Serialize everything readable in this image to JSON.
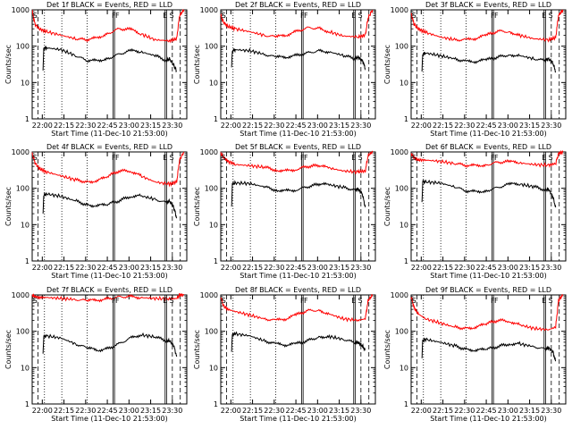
{
  "chart_data": [
    {
      "type": "line",
      "title": "Det 1f BLACK = Events, RED = LLD",
      "xlabel": "Start Time (11-Dec-10 21:53:00)",
      "ylabel": "Counts/sec",
      "x_ticks": [
        "22:00",
        "22:15",
        "22:30",
        "22:45",
        "23:00",
        "23:15",
        "23:30"
      ],
      "y_ticks": [
        "1",
        "10",
        "100",
        "1000"
      ],
      "ylim": [
        1,
        1000
      ],
      "yscale": "log",
      "markers": [
        "S",
        "F",
        "F",
        "E",
        "S"
      ],
      "series": [
        {
          "color": "#ff0000",
          "x": [
            0,
            4,
            10,
            20,
            40,
            60,
            76,
            90,
            104,
            120,
            136,
            150,
            170,
            190,
            200,
            204,
            210
          ],
          "values": [
            900,
            400,
            300,
            250,
            200,
            160,
            150,
            170,
            220,
            300,
            290,
            220,
            150,
            140,
            160,
            700,
            1000
          ]
        },
        {
          "color": "#000000",
          "x": [
            15,
            16,
            20,
            40,
            60,
            76,
            90,
            104,
            120,
            136,
            150,
            170,
            186,
            190,
            196,
            200
          ],
          "values": [
            20,
            85,
            90,
            80,
            55,
            40,
            40,
            45,
            60,
            75,
            70,
            55,
            40,
            45,
            30,
            20
          ]
        }
      ]
    },
    {
      "type": "line",
      "title": "Det 2f BLACK = Events, RED = LLD",
      "xlabel": "Start Time (11-Dec-10 21:53:00)",
      "ylabel": "Counts/sec",
      "x_ticks": [
        "22:00",
        "22:15",
        "22:30",
        "22:45",
        "23:00",
        "23:15",
        "23:30"
      ],
      "y_ticks": [
        "1",
        "10",
        "100",
        "1000"
      ],
      "ylim": [
        1,
        1000
      ],
      "yscale": "log",
      "markers": [
        "S",
        "F",
        "F",
        "E",
        "S"
      ],
      "series": [
        {
          "color": "#ff0000",
          "x": [
            0,
            4,
            10,
            20,
            40,
            60,
            76,
            90,
            104,
            120,
            136,
            150,
            170,
            190,
            200,
            204,
            210
          ],
          "values": [
            700,
            450,
            350,
            300,
            250,
            200,
            180,
            200,
            250,
            320,
            310,
            250,
            190,
            180,
            200,
            600,
            1000
          ]
        },
        {
          "color": "#000000",
          "x": [
            15,
            16,
            20,
            40,
            60,
            76,
            90,
            104,
            120,
            136,
            150,
            170,
            186,
            190,
            196,
            200
          ],
          "values": [
            25,
            75,
            80,
            75,
            60,
            50,
            50,
            55,
            65,
            75,
            70,
            55,
            45,
            50,
            40,
            25
          ]
        }
      ]
    },
    {
      "type": "line",
      "title": "Det 3f BLACK = Events, RED = LLD",
      "xlabel": "Start Time (11-Dec-10 21:53:00)",
      "ylabel": "Counts/sec",
      "x_ticks": [
        "22:00",
        "22:15",
        "22:30",
        "22:45",
        "23:00",
        "23:15",
        "23:30"
      ],
      "y_ticks": [
        "1",
        "10",
        "100",
        "1000"
      ],
      "ylim": [
        1,
        1000
      ],
      "yscale": "log",
      "markers": [
        "S",
        "F",
        "F",
        "E",
        "S"
      ],
      "series": [
        {
          "color": "#ff0000",
          "x": [
            0,
            4,
            10,
            20,
            40,
            60,
            76,
            90,
            104,
            120,
            136,
            150,
            170,
            190,
            200,
            204,
            210
          ],
          "values": [
            800,
            400,
            300,
            240,
            180,
            150,
            150,
            165,
            200,
            260,
            250,
            200,
            160,
            150,
            170,
            700,
            1000
          ]
        },
        {
          "color": "#000000",
          "x": [
            15,
            16,
            20,
            40,
            60,
            76,
            90,
            104,
            120,
            136,
            150,
            170,
            186,
            190,
            196,
            200
          ],
          "values": [
            20,
            60,
            65,
            55,
            45,
            38,
            38,
            42,
            50,
            58,
            55,
            45,
            40,
            45,
            35,
            20
          ]
        }
      ]
    },
    {
      "type": "line",
      "title": "Det 4f BLACK = Events, RED = LLD",
      "xlabel": "Start Time (11-Dec-10 21:53:00)",
      "ylabel": "Counts/sec",
      "x_ticks": [
        "22:00",
        "22:15",
        "22:30",
        "22:45",
        "23:00",
        "23:15",
        "23:30"
      ],
      "y_ticks": [
        "1",
        "10",
        "100",
        "1000"
      ],
      "ylim": [
        1,
        1000
      ],
      "yscale": "log",
      "markers": [
        "S",
        "F",
        "F",
        "E",
        "S"
      ],
      "series": [
        {
          "color": "#ff0000",
          "x": [
            0,
            4,
            10,
            20,
            40,
            60,
            76,
            90,
            104,
            120,
            136,
            150,
            170,
            190,
            200,
            204,
            210
          ],
          "values": [
            900,
            500,
            350,
            280,
            220,
            170,
            150,
            160,
            210,
            300,
            300,
            220,
            150,
            130,
            150,
            600,
            1000
          ]
        },
        {
          "color": "#000000",
          "x": [
            15,
            16,
            20,
            40,
            60,
            76,
            90,
            104,
            120,
            136,
            150,
            170,
            186,
            190,
            196,
            200
          ],
          "values": [
            20,
            65,
            70,
            60,
            45,
            35,
            33,
            36,
            45,
            60,
            62,
            50,
            40,
            45,
            30,
            15
          ]
        }
      ]
    },
    {
      "type": "line",
      "title": "Det 5f BLACK = Events, RED = LLD",
      "xlabel": "Start Time (11-Dec-10 21:53:00)",
      "ylabel": "Counts/sec",
      "x_ticks": [
        "22:00",
        "22:15",
        "22:30",
        "22:45",
        "23:00",
        "23:15",
        "23:30"
      ],
      "y_ticks": [
        "1",
        "10",
        "100",
        "1000"
      ],
      "ylim": [
        1,
        1000
      ],
      "yscale": "log",
      "markers": [
        "S",
        "F",
        "F",
        "E",
        "S"
      ],
      "series": [
        {
          "color": "#ff0000",
          "x": [
            0,
            4,
            10,
            20,
            40,
            60,
            76,
            90,
            104,
            120,
            136,
            150,
            170,
            190,
            200,
            204,
            210
          ],
          "values": [
            900,
            700,
            550,
            450,
            420,
            380,
            320,
            300,
            330,
            400,
            420,
            360,
            300,
            280,
            300,
            800,
            1000
          ]
        },
        {
          "color": "#000000",
          "x": [
            15,
            16,
            20,
            40,
            60,
            76,
            90,
            104,
            120,
            136,
            150,
            170,
            186,
            190,
            196,
            200
          ],
          "values": [
            30,
            130,
            140,
            135,
            110,
            90,
            85,
            90,
            110,
            130,
            125,
            105,
            90,
            95,
            70,
            30
          ]
        }
      ]
    },
    {
      "type": "line",
      "title": "Det 6f BLACK = Events, RED = LLD",
      "xlabel": "Start Time (11-Dec-10 21:53:00)",
      "ylabel": "Counts/sec",
      "x_ticks": [
        "22:00",
        "22:15",
        "22:30",
        "22:45",
        "23:00",
        "23:15",
        "23:30"
      ],
      "y_ticks": [
        "1",
        "10",
        "100",
        "1000"
      ],
      "ylim": [
        1,
        1000
      ],
      "yscale": "log",
      "markers": [
        "S",
        "F",
        "F",
        "E",
        "S"
      ],
      "series": [
        {
          "color": "#ff0000",
          "x": [
            0,
            4,
            10,
            20,
            40,
            60,
            76,
            90,
            104,
            120,
            136,
            150,
            170,
            190,
            200,
            204,
            210
          ],
          "values": [
            900,
            700,
            600,
            600,
            550,
            480,
            430,
            420,
            440,
            520,
            540,
            500,
            450,
            430,
            480,
            900,
            1000
          ]
        },
        {
          "color": "#000000",
          "x": [
            15,
            16,
            20,
            40,
            60,
            76,
            90,
            104,
            120,
            136,
            150,
            170,
            186,
            190,
            196,
            200
          ],
          "values": [
            40,
            150,
            150,
            140,
            110,
            85,
            80,
            85,
            105,
            130,
            130,
            110,
            90,
            95,
            60,
            30
          ]
        }
      ]
    },
    {
      "type": "line",
      "title": "Det 7f BLACK = Events, RED = LLD",
      "xlabel": "Start Time (11-Dec-10 21:53:00)",
      "ylabel": "Counts/sec",
      "x_ticks": [
        "22:00",
        "22:15",
        "22:30",
        "22:45",
        "23:00",
        "23:15",
        "23:30"
      ],
      "y_ticks": [
        "1",
        "10",
        "100",
        "1000"
      ],
      "ylim": [
        1,
        1000
      ],
      "yscale": "log",
      "markers": [
        "S",
        "F",
        "F",
        "E",
        "S"
      ],
      "series": [
        {
          "color": "#ff0000",
          "x": [
            0,
            4,
            10,
            20,
            40,
            60,
            76,
            90,
            104,
            120,
            136,
            150,
            170,
            190,
            200,
            204,
            210
          ],
          "values": [
            1000,
            900,
            850,
            850,
            800,
            750,
            700,
            720,
            780,
            880,
            900,
            850,
            800,
            780,
            800,
            1000,
            1000
          ]
        },
        {
          "color": "#000000",
          "x": [
            15,
            16,
            20,
            40,
            60,
            76,
            90,
            104,
            120,
            136,
            150,
            170,
            186,
            190,
            196,
            200
          ],
          "values": [
            25,
            70,
            75,
            65,
            45,
            35,
            30,
            33,
            45,
            65,
            80,
            70,
            55,
            55,
            40,
            20
          ]
        }
      ]
    },
    {
      "type": "line",
      "title": "Det 8f BLACK = Events, RED = LLD",
      "xlabel": "Start Time (11-Dec-10 21:53:00)",
      "ylabel": "Counts/sec",
      "x_ticks": [
        "22:00",
        "22:15",
        "22:30",
        "22:45",
        "23:00",
        "23:15",
        "23:30"
      ],
      "y_ticks": [
        "1",
        "10",
        "100",
        "1000"
      ],
      "ylim": [
        1,
        1000
      ],
      "yscale": "log",
      "markers": [
        "S",
        "F",
        "F",
        "E",
        "S"
      ],
      "series": [
        {
          "color": "#ff0000",
          "x": [
            0,
            4,
            10,
            20,
            40,
            60,
            76,
            90,
            104,
            120,
            136,
            150,
            170,
            190,
            200,
            204,
            210
          ],
          "values": [
            900,
            500,
            400,
            350,
            280,
            220,
            200,
            220,
            280,
            370,
            380,
            300,
            220,
            200,
            220,
            700,
            1000
          ]
        },
        {
          "color": "#000000",
          "x": [
            15,
            16,
            20,
            40,
            60,
            76,
            90,
            104,
            120,
            136,
            150,
            170,
            186,
            190,
            196,
            200
          ],
          "values": [
            30,
            80,
            85,
            75,
            55,
            45,
            42,
            45,
            55,
            70,
            72,
            60,
            48,
            50,
            40,
            30
          ]
        }
      ]
    },
    {
      "type": "line",
      "title": "Det 9f BLACK = Events, RED = LLD",
      "xlabel": "Start Time (11-Dec-10 21:53:00)",
      "ylabel": "Counts/sec",
      "x_ticks": [
        "22:00",
        "22:15",
        "22:30",
        "22:45",
        "23:00",
        "23:15",
        "23:30"
      ],
      "y_ticks": [
        "1",
        "10",
        "100",
        "1000"
      ],
      "ylim": [
        1,
        1000
      ],
      "yscale": "log",
      "markers": [
        "S",
        "F",
        "F",
        "E",
        "S"
      ],
      "series": [
        {
          "color": "#ff0000",
          "x": [
            0,
            4,
            10,
            20,
            40,
            60,
            76,
            90,
            104,
            120,
            136,
            150,
            170,
            190,
            200,
            204,
            210
          ],
          "values": [
            900,
            450,
            300,
            220,
            170,
            130,
            120,
            130,
            160,
            200,
            190,
            150,
            120,
            110,
            130,
            700,
            1000
          ]
        },
        {
          "color": "#000000",
          "x": [
            15,
            16,
            20,
            40,
            60,
            76,
            90,
            104,
            120,
            136,
            150,
            170,
            186,
            190,
            196,
            200
          ],
          "values": [
            20,
            55,
            60,
            50,
            40,
            32,
            30,
            32,
            38,
            45,
            45,
            38,
            32,
            35,
            28,
            15
          ]
        }
      ]
    }
  ]
}
